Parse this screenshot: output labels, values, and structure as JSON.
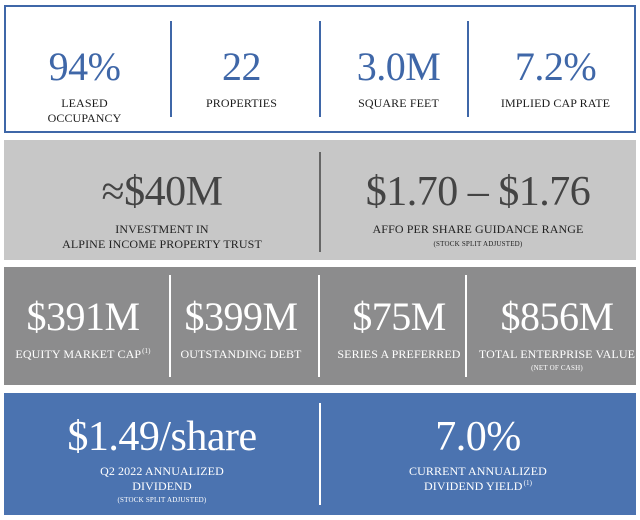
{
  "row1": [
    {
      "value": "94%",
      "label_line1": "LEASED",
      "label_line2": "OCCUPANCY"
    },
    {
      "value": "22",
      "label_line1": "PROPERTIES",
      "label_line2": ""
    },
    {
      "value": "3.0M",
      "label_line1": "SQUARE FEET",
      "label_line2": ""
    },
    {
      "value": "7.2%",
      "label_line1": "IMPLIED CAP RATE",
      "label_line2": ""
    }
  ],
  "row2": [
    {
      "value": "≈$40M",
      "label_line1": "INVESTMENT IN",
      "label_line2": "ALPINE INCOME PROPERTY TRUST",
      "note": ""
    },
    {
      "value": "$1.70 – $1.76",
      "label_line1": "AFFO PER SHARE GUIDANCE RANGE",
      "label_line2": "",
      "note": "(STOCK SPLIT ADJUSTED)"
    }
  ],
  "row3": [
    {
      "value": "$391M",
      "label": "EQUITY MARKET CAP",
      "footnote": "(1)",
      "note": ""
    },
    {
      "value": "$399M",
      "label": "OUTSTANDING DEBT",
      "footnote": "",
      "note": ""
    },
    {
      "value": "$75M",
      "label": "SERIES A PREFERRED",
      "footnote": "",
      "note": ""
    },
    {
      "value": "$856M",
      "label": "TOTAL ENTERPRISE VALUE",
      "footnote": "",
      "note": "(NET OF CASH)"
    }
  ],
  "row4": [
    {
      "value": "$1.49/share",
      "label_line1": "Q2 2022 ANNUALIZED",
      "label_line2": "DIVIDEND",
      "footnote": "",
      "note": "(STOCK SPLIT ADJUSTED)"
    },
    {
      "value": "7.0%",
      "label_line1": "CURRENT ANNUALIZED",
      "label_line2": "DIVIDEND YIELD",
      "footnote": "(1)",
      "note": ""
    }
  ],
  "colors": {
    "accent_blue": "#3f67a8",
    "light_gray_panel": "#c7c7c7",
    "dark_gray_panel": "#8c8c8d",
    "blue_panel": "#4b73b0"
  }
}
